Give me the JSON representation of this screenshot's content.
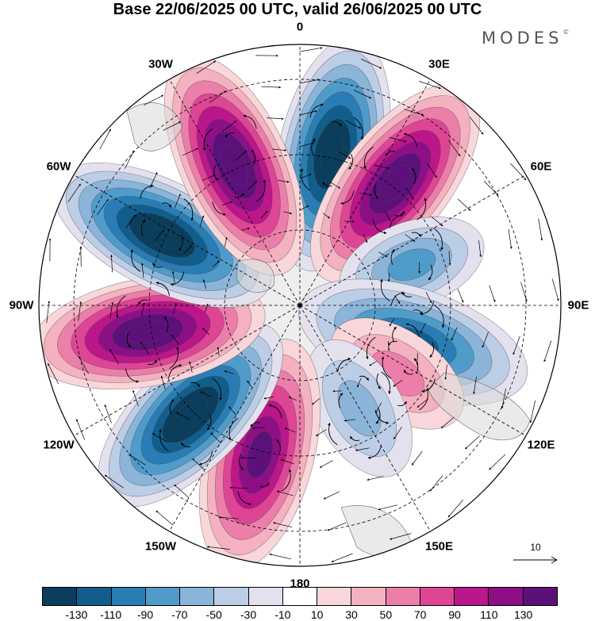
{
  "title": "Base 22/06/2025 00 UTC, valid 26/06/2025 00 UTC",
  "brand": "MODES",
  "brand_mark": "©",
  "longitude_labels": [
    {
      "text": "0",
      "lon": 0
    },
    {
      "text": "30E",
      "lon": 30
    },
    {
      "text": "60E",
      "lon": 60
    },
    {
      "text": "90E",
      "lon": 90
    },
    {
      "text": "120E",
      "lon": 120
    },
    {
      "text": "150E",
      "lon": 150
    },
    {
      "text": "180",
      "lon": 180
    },
    {
      "text": "150W",
      "lon": 210
    },
    {
      "text": "120W",
      "lon": 240
    },
    {
      "text": "90W",
      "lon": 270
    },
    {
      "text": "60W",
      "lon": 300
    },
    {
      "text": "30W",
      "lon": 330
    }
  ],
  "reference_vector": {
    "value": "10"
  },
  "colorbar": {
    "colors": [
      "#0b3d5c",
      "#115e8c",
      "#2a7db4",
      "#4f9ccb",
      "#8bb4d9",
      "#bccde6",
      "#e4e1ef",
      "#ffffff",
      "#f9d6d9",
      "#f4b1c0",
      "#ec7eaa",
      "#de4595",
      "#bb168a",
      "#8d0f86",
      "#5c117a"
    ],
    "ticks": [
      "-130",
      "-110",
      "-90",
      "-70",
      "-50",
      "-30",
      "-10",
      "10",
      "30",
      "50",
      "70",
      "90",
      "110",
      "130"
    ]
  },
  "map_features": {
    "projection": "south-polar-stereographic",
    "graticule": "dashed",
    "vectors": "wind arrows",
    "anomaly_centers": [
      {
        "lon": 12,
        "sign": "negative",
        "level": "-130"
      },
      {
        "lon": 38,
        "sign": "positive",
        "level": "130"
      },
      {
        "lon": 70,
        "sign": "negative",
        "level": "-50"
      },
      {
        "lon": 108,
        "sign": "negative",
        "level": "-90"
      },
      {
        "lon": 125,
        "sign": "positive",
        "level": "30"
      },
      {
        "lon": 150,
        "sign": "negative",
        "level": "-30"
      },
      {
        "lon": 195,
        "sign": "positive",
        "level": "110"
      },
      {
        "lon": 225,
        "sign": "negative",
        "level": "-130"
      },
      {
        "lon": 260,
        "sign": "positive",
        "level": "130"
      },
      {
        "lon": 297,
        "sign": "negative",
        "level": "-130"
      },
      {
        "lon": 335,
        "sign": "positive",
        "level": "130"
      }
    ]
  }
}
